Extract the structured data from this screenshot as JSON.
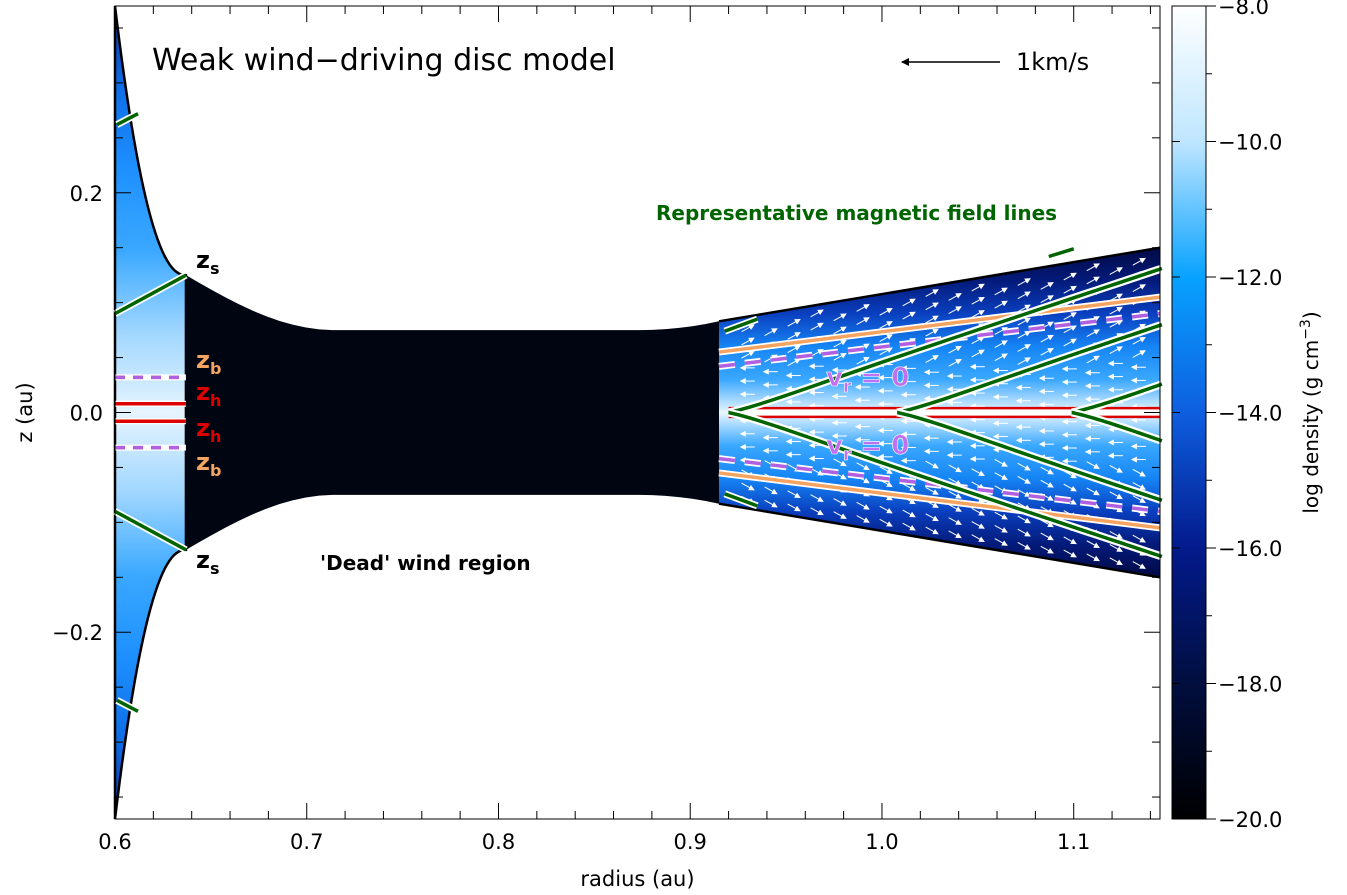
{
  "chart_data": {
    "type": "heatmap",
    "title": "Weak wind−driving disc model",
    "xlabel": "radius (au)",
    "ylabel": "z (au)",
    "xlim": [
      0.6,
      1.145
    ],
    "ylim": [
      -0.37,
      0.37
    ],
    "x_ticks": [
      {
        "value": 0.6,
        "label": "0.6"
      },
      {
        "value": 0.7,
        "label": "0.7"
      },
      {
        "value": 0.8,
        "label": "0.8"
      },
      {
        "value": 0.9,
        "label": "0.9"
      },
      {
        "value": 1.0,
        "label": "1.0"
      },
      {
        "value": 1.1,
        "label": "1.1"
      }
    ],
    "y_ticks": [
      {
        "value": 0.2,
        "label": "0.2"
      },
      {
        "value": 0.0,
        "label": "0.0"
      },
      {
        "value": -0.2,
        "label": "−0.2"
      }
    ],
    "colorbar": {
      "label_main": "log density (g cm",
      "label_exp": "−3",
      "label_close": ")",
      "range": [
        -20.0,
        -8.0
      ],
      "ticks": [
        {
          "value": -8.0,
          "label": "−8.0"
        },
        {
          "value": -10.0,
          "label": "−10.0"
        },
        {
          "value": -12.0,
          "label": "−12.0"
        },
        {
          "value": -14.0,
          "label": "−14.0"
        },
        {
          "value": -16.0,
          "label": "−16.0"
        },
        {
          "value": -18.0,
          "label": "−18.0"
        },
        {
          "value": -20.0,
          "label": "−20.0"
        }
      ],
      "colors": [
        "#000000",
        "#010e3f",
        "#031a8c",
        "#0e5fe0",
        "#08a2ff",
        "#bfe6ff",
        "#ffffff"
      ]
    },
    "velocity_scale": {
      "label": "1km/s"
    },
    "annotations": {
      "field_lines": "Representative magnetic field lines",
      "dead_region": "'Dead' wind region",
      "vr_zero_upper": {
        "main": "v",
        "sub": "r",
        "rest": " = 0"
      },
      "vr_zero_lower": {
        "main": "v",
        "sub": "r",
        "rest": " = 0"
      },
      "zs_upper": {
        "main": "z",
        "sub": "s"
      },
      "zs_lower": {
        "main": "z",
        "sub": "s"
      },
      "zb_upper": {
        "main": "z",
        "sub": "b"
      },
      "zb_lower": {
        "main": "z",
        "sub": "b"
      },
      "zh_upper": {
        "main": "z",
        "sub": "h"
      },
      "zh_lower": {
        "main": "z",
        "sub": "h"
      }
    },
    "regions": [
      {
        "name": "inner-disc",
        "r_range": [
          0.6,
          0.637
        ],
        "z_surface_at_r_min": 0.37,
        "z_surface_at_r_max": 0.125
      },
      {
        "name": "dead-wind-region",
        "r_range": [
          0.637,
          0.915
        ],
        "z_surface": 0.075
      },
      {
        "name": "outer-disc",
        "r_range": [
          0.915,
          1.145
        ],
        "z_surface_at_r_min": 0.083,
        "z_surface_at_r_max": 0.15
      }
    ],
    "curves": {
      "zh": 0.008,
      "zb_inner": 0.032,
      "zb_outer": {
        "r": [
          0.915,
          1.145
        ],
        "z": [
          0.055,
          0.105
        ]
      },
      "vr0_outer": {
        "r": [
          0.915,
          1.145
        ],
        "z": [
          0.042,
          0.09
        ]
      },
      "field_line_vertices": [
        0.92,
        1.008,
        1.099
      ]
    },
    "colors": {
      "field_line": "#006400",
      "zb_line": "#f4a460",
      "zh_line": "#dd0000",
      "vr_line": "#b060e0",
      "vector": "#ffffff"
    }
  }
}
